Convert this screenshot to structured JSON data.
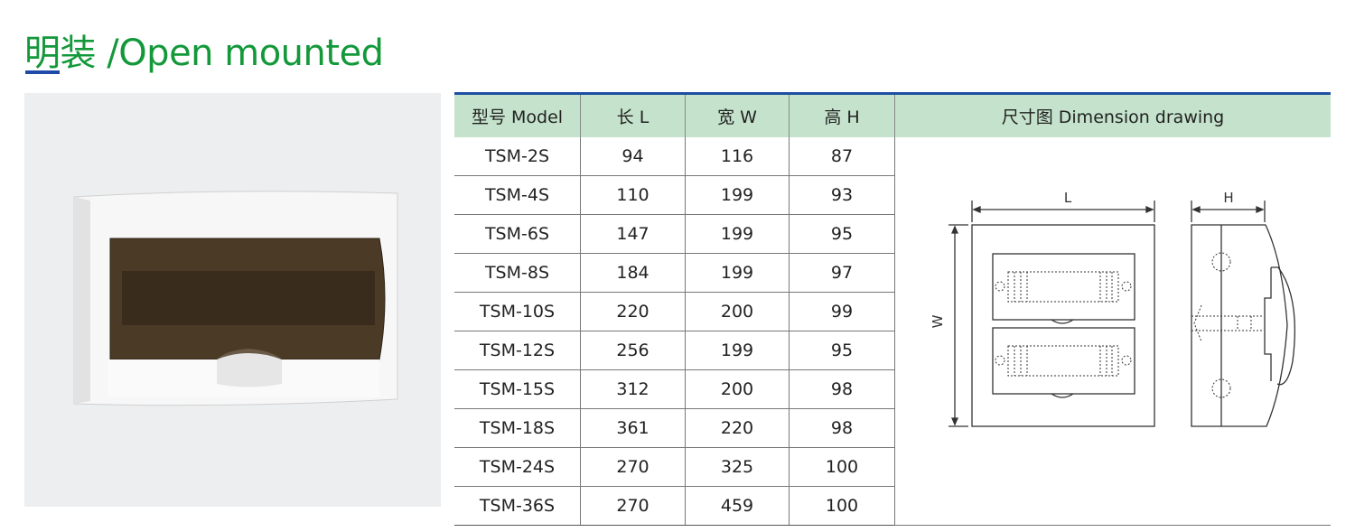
{
  "title": "明装 /Open mounted",
  "colors": {
    "title": "#13983a",
    "accent_line": "#1f4aa8",
    "header_bg": "#c5e3cc"
  },
  "table": {
    "headers": [
      "型号 Model",
      "长 L",
      "宽 W",
      "高 H",
      "尺寸图 Dimension drawing"
    ],
    "rows": [
      [
        "TSM-2S",
        "94",
        "116",
        "87"
      ],
      [
        "TSM-4S",
        "110",
        "199",
        "93"
      ],
      [
        "TSM-6S",
        "147",
        "199",
        "95"
      ],
      [
        "TSM-8S",
        "184",
        "199",
        "97"
      ],
      [
        "TSM-10S",
        "220",
        "200",
        "99"
      ],
      [
        "TSM-12S",
        "256",
        "199",
        "95"
      ],
      [
        "TSM-15S",
        "312",
        "200",
        "98"
      ],
      [
        "TSM-18S",
        "361",
        "220",
        "98"
      ],
      [
        "TSM-24S",
        "270",
        "325",
        "100"
      ],
      [
        "TSM-36S",
        "270",
        "459",
        "100"
      ]
    ]
  },
  "drawing": {
    "l_label": "L",
    "w_label": "W",
    "h_label": "H"
  }
}
